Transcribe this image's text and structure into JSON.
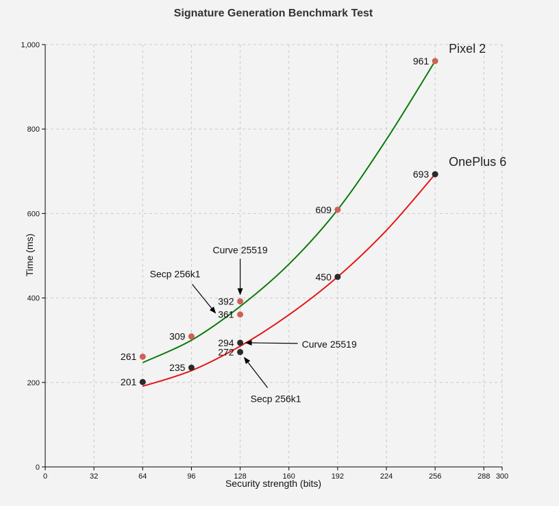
{
  "chart_data": {
    "type": "line",
    "title": "Signature Generation Benchmark Test",
    "xlabel": "Security strength (bits)",
    "ylabel": "Time (ms)",
    "xlim": [
      0,
      300
    ],
    "ylim": [
      0,
      1000
    ],
    "x_ticks": [
      "0",
      "32",
      "64",
      "96",
      "128",
      "160",
      "192",
      "224",
      "256",
      "288",
      "300"
    ],
    "x_tick_values": [
      0,
      32,
      64,
      96,
      128,
      160,
      192,
      224,
      256,
      288,
      300
    ],
    "y_ticks": [
      "0",
      "200",
      "400",
      "600",
      "800",
      "1,000"
    ],
    "y_tick_values": [
      0,
      200,
      400,
      600,
      800,
      1000
    ],
    "grid": true,
    "series": [
      {
        "name": "Pixel 2",
        "color": "#0a7a0a",
        "point_color": "#d0605a",
        "points": [
          {
            "x": 64,
            "y": 261,
            "label": "261"
          },
          {
            "x": 96,
            "y": 309,
            "label": "309"
          },
          {
            "x": 128,
            "y": 392,
            "label": "392"
          },
          {
            "x": 128,
            "y": 361,
            "label": "361"
          },
          {
            "x": 192,
            "y": 609,
            "label": "609"
          },
          {
            "x": 256,
            "y": 961,
            "label": "961"
          }
        ],
        "curve": [
          [
            64,
            247
          ],
          [
            96,
            300
          ],
          [
            128,
            380
          ],
          [
            160,
            480
          ],
          [
            192,
            609
          ],
          [
            224,
            775
          ],
          [
            256,
            961
          ]
        ]
      },
      {
        "name": "OnePlus 6",
        "color": "#e41515",
        "point_color": "#2b2b2b",
        "points": [
          {
            "x": 64,
            "y": 201,
            "label": "201"
          },
          {
            "x": 96,
            "y": 235,
            "label": "235"
          },
          {
            "x": 128,
            "y": 294,
            "label": "294"
          },
          {
            "x": 128,
            "y": 272,
            "label": "272"
          },
          {
            "x": 192,
            "y": 450,
            "label": "450"
          },
          {
            "x": 256,
            "y": 693,
            "label": "693"
          }
        ],
        "curve": [
          [
            64,
            191
          ],
          [
            96,
            228
          ],
          [
            128,
            286
          ],
          [
            160,
            360
          ],
          [
            192,
            450
          ],
          [
            224,
            560
          ],
          [
            256,
            693
          ]
        ]
      }
    ],
    "annotations": [
      {
        "text": "Curve 25519",
        "series": "Pixel 2",
        "point_x": 128,
        "point_y": 392
      },
      {
        "text": "Secp 256k1",
        "series": "Pixel 2",
        "point_x": 128,
        "point_y": 361
      },
      {
        "text": "Curve 25519",
        "series": "OnePlus 6",
        "point_x": 128,
        "point_y": 294
      },
      {
        "text": "Secp 256k1",
        "series": "OnePlus 6",
        "point_x": 128,
        "point_y": 272
      }
    ]
  }
}
